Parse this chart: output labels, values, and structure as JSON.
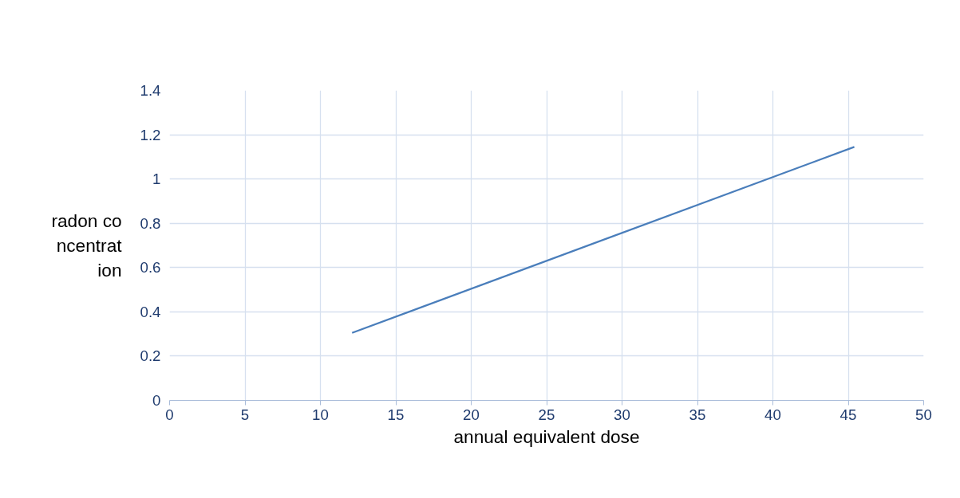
{
  "chart_data": {
    "type": "line",
    "xlabel": "annual equivalent dose",
    "ylabel": "radon concentration",
    "x": [
      12.1,
      45.4
    ],
    "series": [
      {
        "color": "#4a7ebb",
        "values": [
          0.305,
          1.145
        ]
      }
    ],
    "xlim": [
      0,
      50
    ],
    "xticks": [
      0,
      5,
      10,
      15,
      20,
      25,
      30,
      35,
      40,
      45,
      50
    ],
    "ylim": [
      0,
      1.4
    ],
    "yticks": [
      0,
      {
        "value": 0.2,
        "label": "0.2"
      },
      {
        "value": 0.4,
        "label": "0.4"
      },
      {
        "value": 0.6,
        "label": "0.6"
      },
      {
        "value": 0.8,
        "label": "0.8"
      },
      1,
      {
        "value": 1.2,
        "label": "1.2"
      },
      {
        "value": 1.4,
        "label": "1.4"
      }
    ],
    "grid": true,
    "marker": "none",
    "line_style": "solid"
  }
}
